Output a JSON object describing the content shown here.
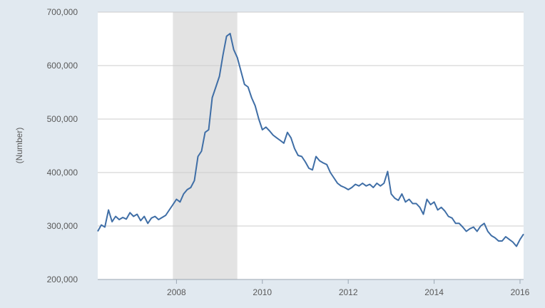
{
  "chart_data": {
    "type": "line",
    "title": "",
    "xlabel": "",
    "ylabel": "(Number)",
    "ylim": [
      200000,
      700000
    ],
    "xlim": [
      "2006-03",
      "2016-02"
    ],
    "y_ticks": [
      {
        "value": 200000,
        "label": "200,000"
      },
      {
        "value": 300000,
        "label": "300,000"
      },
      {
        "value": 400000,
        "label": "400,000"
      },
      {
        "value": 500000,
        "label": "500,000"
      },
      {
        "value": 600000,
        "label": "600,000"
      },
      {
        "value": 700000,
        "label": "700,000"
      }
    ],
    "x_ticks": [
      {
        "value": "2008-01",
        "label": "2008"
      },
      {
        "value": "2010-01",
        "label": "2010"
      },
      {
        "value": "2012-01",
        "label": "2012"
      },
      {
        "value": "2014-01",
        "label": "2014"
      },
      {
        "value": "2016-01",
        "label": "2016"
      }
    ],
    "grid": "horizontal",
    "recession_shading": [
      {
        "start": "2007-12",
        "end": "2009-06"
      }
    ],
    "colors": {
      "line": "#3f6ea6",
      "shade": "#e3e3e3",
      "grid": "#cccccc",
      "plot_bg": "#ffffff",
      "page_bg": "#e1e9f0"
    },
    "series": [
      {
        "x": [
          "2006-03",
          "2006-04",
          "2006-05",
          "2006-06",
          "2006-07",
          "2006-08",
          "2006-09",
          "2006-10",
          "2006-11",
          "2006-12",
          "2007-01",
          "2007-02",
          "2007-03",
          "2007-04",
          "2007-05",
          "2007-06",
          "2007-07",
          "2007-08",
          "2007-09",
          "2007-10",
          "2007-11",
          "2007-12",
          "2008-01",
          "2008-02",
          "2008-03",
          "2008-04",
          "2008-05",
          "2008-06",
          "2008-07",
          "2008-08",
          "2008-09",
          "2008-10",
          "2008-11",
          "2008-12",
          "2009-01",
          "2009-02",
          "2009-03",
          "2009-04",
          "2009-05",
          "2009-06",
          "2009-07",
          "2009-08",
          "2009-09",
          "2009-10",
          "2009-11",
          "2009-12",
          "2010-01",
          "2010-02",
          "2010-03",
          "2010-04",
          "2010-05",
          "2010-06",
          "2010-07",
          "2010-08",
          "2010-09",
          "2010-10",
          "2010-11",
          "2010-12",
          "2011-01",
          "2011-02",
          "2011-03",
          "2011-04",
          "2011-05",
          "2011-06",
          "2011-07",
          "2011-08",
          "2011-09",
          "2011-10",
          "2011-11",
          "2011-12",
          "2012-01",
          "2012-02",
          "2012-03",
          "2012-04",
          "2012-05",
          "2012-06",
          "2012-07",
          "2012-08",
          "2012-09",
          "2012-10",
          "2012-11",
          "2012-12",
          "2013-01",
          "2013-02",
          "2013-03",
          "2013-04",
          "2013-05",
          "2013-06",
          "2013-07",
          "2013-08",
          "2013-09",
          "2013-10",
          "2013-11",
          "2013-12",
          "2014-01",
          "2014-02",
          "2014-03",
          "2014-04",
          "2014-05",
          "2014-06",
          "2014-07",
          "2014-08",
          "2014-09",
          "2014-10",
          "2014-11",
          "2014-12",
          "2015-01",
          "2015-02",
          "2015-03",
          "2015-04",
          "2015-05",
          "2015-06",
          "2015-07",
          "2015-08",
          "2015-09",
          "2015-10",
          "2015-11",
          "2015-12",
          "2016-01",
          "2016-02"
        ],
        "y": [
          290000,
          302000,
          298000,
          330000,
          308000,
          318000,
          312000,
          316000,
          313000,
          325000,
          318000,
          322000,
          310000,
          318000,
          305000,
          315000,
          318000,
          312000,
          316000,
          320000,
          330000,
          340000,
          350000,
          345000,
          360000,
          368000,
          372000,
          385000,
          430000,
          440000,
          475000,
          480000,
          540000,
          560000,
          580000,
          620000,
          655000,
          660000,
          630000,
          615000,
          590000,
          565000,
          560000,
          540000,
          525000,
          500000,
          480000,
          485000,
          478000,
          470000,
          465000,
          460000,
          455000,
          475000,
          465000,
          445000,
          432000,
          430000,
          420000,
          408000,
          405000,
          430000,
          422000,
          418000,
          415000,
          400000,
          390000,
          380000,
          375000,
          372000,
          368000,
          372000,
          378000,
          375000,
          380000,
          375000,
          378000,
          372000,
          380000,
          375000,
          380000,
          402000,
          360000,
          352000,
          348000,
          360000,
          345000,
          350000,
          342000,
          342000,
          335000,
          322000,
          350000,
          340000,
          345000,
          330000,
          335000,
          328000,
          318000,
          315000,
          305000,
          305000,
          298000,
          290000,
          295000,
          298000,
          290000,
          300000,
          305000,
          290000,
          282000,
          278000,
          272000,
          272000,
          280000,
          275000,
          270000,
          262000,
          275000,
          285000
        ]
      }
    ]
  }
}
